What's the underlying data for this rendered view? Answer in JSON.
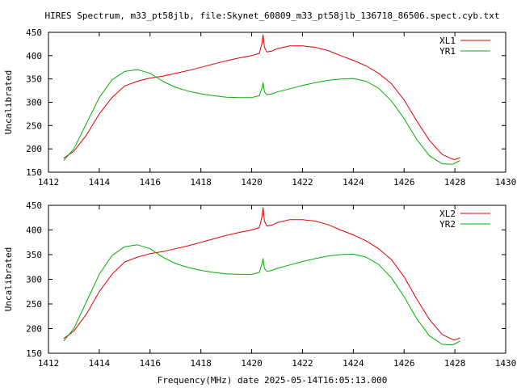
{
  "title": "HIRES Spectrum, m33_pt58jlb, file:Skynet_60809_m33_pt58jlb_136718_86506.spect.cyb.txt",
  "footer": "Frequency(MHz) date 2025-05-14T16:05:13.000",
  "colors": {
    "red": "#e00000",
    "green": "#00b000"
  },
  "chart_data": [
    {
      "type": "line",
      "ylabel": "Uncalibrated",
      "xlim": [
        1412,
        1430
      ],
      "ylim": [
        150,
        450
      ],
      "xticks": [
        1412,
        1414,
        1416,
        1418,
        1420,
        1422,
        1424,
        1426,
        1428,
        1430
      ],
      "yticks": [
        150,
        200,
        250,
        300,
        350,
        400,
        450
      ],
      "legend_position": "top-right",
      "series": [
        {
          "name": "XL1",
          "color": "red",
          "x": [
            1412.6,
            1413.0,
            1413.5,
            1414.0,
            1414.5,
            1415.0,
            1415.5,
            1416.0,
            1416.5,
            1417.0,
            1417.5,
            1418.0,
            1418.5,
            1419.0,
            1419.5,
            1420.0,
            1420.3,
            1420.4,
            1420.45,
            1420.5,
            1420.6,
            1420.8,
            1421.0,
            1421.5,
            1422.0,
            1422.5,
            1423.0,
            1423.5,
            1424.0,
            1424.5,
            1425.0,
            1425.5,
            1426.0,
            1426.5,
            1427.0,
            1427.5,
            1427.9,
            1428.0,
            1428.2
          ],
          "values": [
            180,
            195,
            230,
            275,
            310,
            335,
            345,
            352,
            356,
            362,
            368,
            375,
            382,
            389,
            395,
            400,
            405,
            425,
            445,
            418,
            408,
            410,
            415,
            421,
            421,
            418,
            411,
            400,
            390,
            378,
            362,
            340,
            305,
            260,
            218,
            188,
            178,
            177,
            181
          ]
        },
        {
          "name": "YR1",
          "color": "green",
          "x": [
            1412.6,
            1413.0,
            1413.5,
            1414.0,
            1414.5,
            1415.0,
            1415.5,
            1416.0,
            1416.5,
            1417.0,
            1417.5,
            1418.0,
            1418.5,
            1419.0,
            1419.5,
            1420.0,
            1420.3,
            1420.4,
            1420.45,
            1420.5,
            1420.6,
            1420.8,
            1421.0,
            1421.5,
            1422.0,
            1422.5,
            1423.0,
            1423.5,
            1424.0,
            1424.5,
            1425.0,
            1425.5,
            1426.0,
            1426.5,
            1427.0,
            1427.5,
            1427.9,
            1428.0,
            1428.2
          ],
          "values": [
            175,
            200,
            255,
            310,
            348,
            366,
            370,
            362,
            345,
            332,
            324,
            318,
            314,
            311,
            310,
            310,
            314,
            330,
            342,
            322,
            316,
            318,
            322,
            329,
            336,
            342,
            347,
            350,
            351,
            345,
            330,
            303,
            265,
            220,
            185,
            168,
            167,
            169,
            175
          ]
        }
      ]
    },
    {
      "type": "line",
      "ylabel": "Uncalibrated",
      "xlim": [
        1412,
        1430
      ],
      "ylim": [
        150,
        450
      ],
      "xticks": [
        1412,
        1414,
        1416,
        1418,
        1420,
        1422,
        1424,
        1426,
        1428,
        1430
      ],
      "yticks": [
        150,
        200,
        250,
        300,
        350,
        400,
        450
      ],
      "legend_position": "top-right",
      "series": [
        {
          "name": "XL2",
          "color": "red",
          "x": [
            1412.6,
            1413.0,
            1413.5,
            1414.0,
            1414.5,
            1415.0,
            1415.5,
            1416.0,
            1416.5,
            1417.0,
            1417.5,
            1418.0,
            1418.5,
            1419.0,
            1419.5,
            1420.0,
            1420.3,
            1420.4,
            1420.45,
            1420.5,
            1420.6,
            1420.8,
            1421.0,
            1421.5,
            1422.0,
            1422.5,
            1423.0,
            1423.5,
            1424.0,
            1424.5,
            1425.0,
            1425.5,
            1426.0,
            1426.5,
            1427.0,
            1427.5,
            1427.9,
            1428.0,
            1428.2
          ],
          "values": [
            180,
            195,
            230,
            275,
            310,
            335,
            345,
            352,
            356,
            362,
            368,
            375,
            382,
            389,
            395,
            400,
            405,
            425,
            445,
            418,
            408,
            410,
            415,
            421,
            421,
            418,
            411,
            400,
            390,
            378,
            362,
            340,
            305,
            260,
            218,
            188,
            178,
            177,
            181
          ]
        },
        {
          "name": "YR2",
          "color": "green",
          "x": [
            1412.6,
            1413.0,
            1413.5,
            1414.0,
            1414.5,
            1415.0,
            1415.5,
            1416.0,
            1416.5,
            1417.0,
            1417.5,
            1418.0,
            1418.5,
            1419.0,
            1419.5,
            1420.0,
            1420.3,
            1420.4,
            1420.45,
            1420.5,
            1420.6,
            1420.8,
            1421.0,
            1421.5,
            1422.0,
            1422.5,
            1423.0,
            1423.5,
            1424.0,
            1424.5,
            1425.0,
            1425.5,
            1426.0,
            1426.5,
            1427.0,
            1427.5,
            1427.9,
            1428.0,
            1428.2
          ],
          "values": [
            175,
            200,
            255,
            310,
            348,
            366,
            370,
            362,
            345,
            332,
            324,
            318,
            314,
            311,
            310,
            310,
            314,
            330,
            342,
            322,
            316,
            318,
            322,
            329,
            336,
            342,
            347,
            350,
            351,
            345,
            330,
            303,
            265,
            220,
            185,
            168,
            167,
            169,
            175
          ]
        }
      ]
    }
  ]
}
